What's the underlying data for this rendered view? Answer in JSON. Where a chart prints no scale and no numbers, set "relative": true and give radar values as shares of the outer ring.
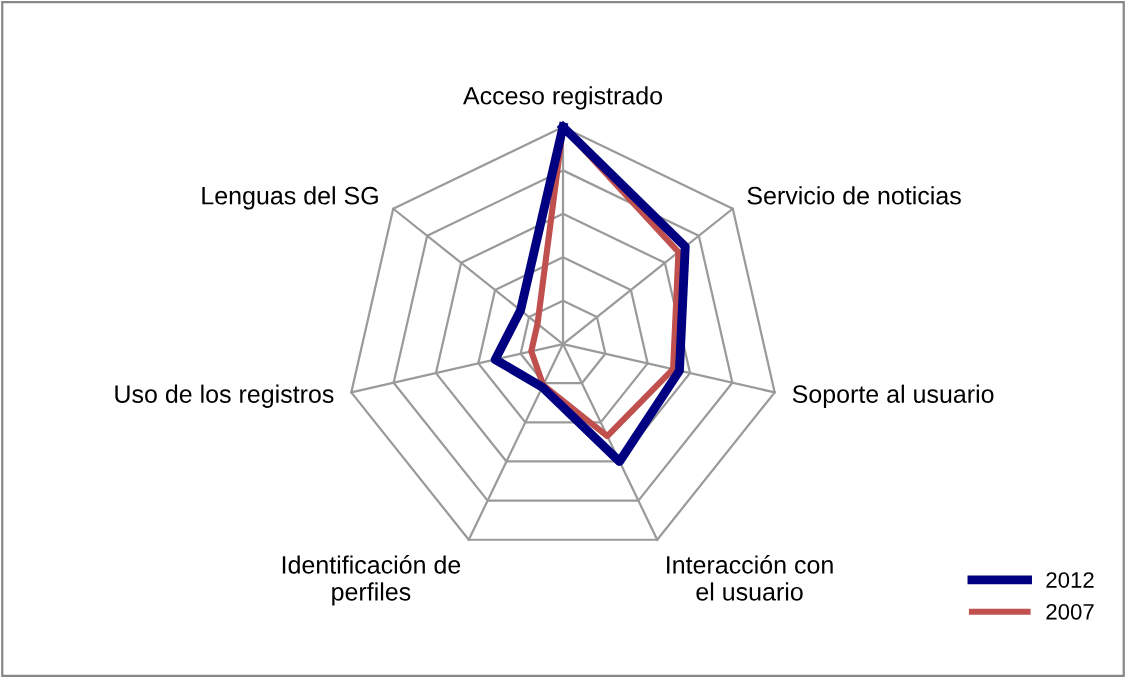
{
  "chart_data": {
    "type": "radar",
    "relative": true,
    "grid": true,
    "legend": "bottom right",
    "categories": [
      "Acceso registrado",
      "Servicio de noticias",
      "Soporte al usuario",
      "Interacción con el usuario",
      "Identificación de perfiles",
      "Uso de los registros",
      "Lenguas del SG"
    ],
    "series": [
      {
        "name": "2012",
        "color": "#000080",
        "values": [
          1.0,
          0.72,
          0.55,
          0.6,
          0.22,
          0.32,
          0.25
        ]
      },
      {
        "name": "2007",
        "color": "#c0504d",
        "values": [
          1.0,
          0.68,
          0.52,
          0.47,
          0.21,
          0.15,
          0.15
        ]
      }
    ]
  }
}
